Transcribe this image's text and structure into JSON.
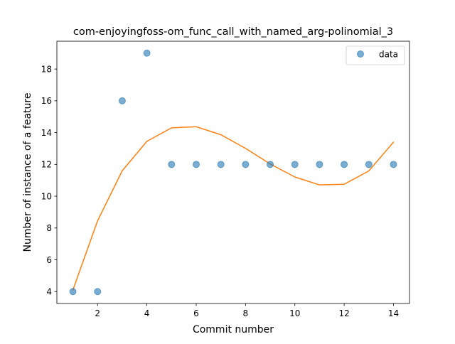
{
  "chart_data": {
    "type": "scatter",
    "title": "com-enjoyingfoss-om_func_call_with_named_arg-polinomial_3",
    "xlabel": "Commit number",
    "ylabel": "Number of instance of a feature",
    "xlim": [
      0.35,
      14.65
    ],
    "ylim": [
      3.25,
      19.75
    ],
    "xticks": [
      2,
      4,
      6,
      8,
      10,
      12,
      14
    ],
    "yticks": [
      4,
      6,
      8,
      10,
      12,
      14,
      16,
      18
    ],
    "grid": false,
    "legend_position": "top-right",
    "series": [
      {
        "name": "data",
        "kind": "scatter",
        "color": "#1f77b4",
        "x": [
          1,
          2,
          3,
          4,
          5,
          6,
          7,
          8,
          9,
          10,
          11,
          12,
          13,
          14
        ],
        "y": [
          4,
          4,
          16,
          19,
          12,
          12,
          12,
          12,
          12,
          12,
          12,
          12,
          12,
          12
        ]
      },
      {
        "kind": "line",
        "color": "#ff7f0e",
        "x": [
          1,
          2,
          3,
          4,
          5,
          6,
          7,
          8,
          9,
          10,
          11,
          12,
          13,
          14
        ],
        "y": [
          4.1,
          8.45,
          11.6,
          13.45,
          14.3,
          14.37,
          13.87,
          13.01,
          12.03,
          11.21,
          10.71,
          10.75,
          11.59,
          13.4
        ]
      }
    ]
  }
}
